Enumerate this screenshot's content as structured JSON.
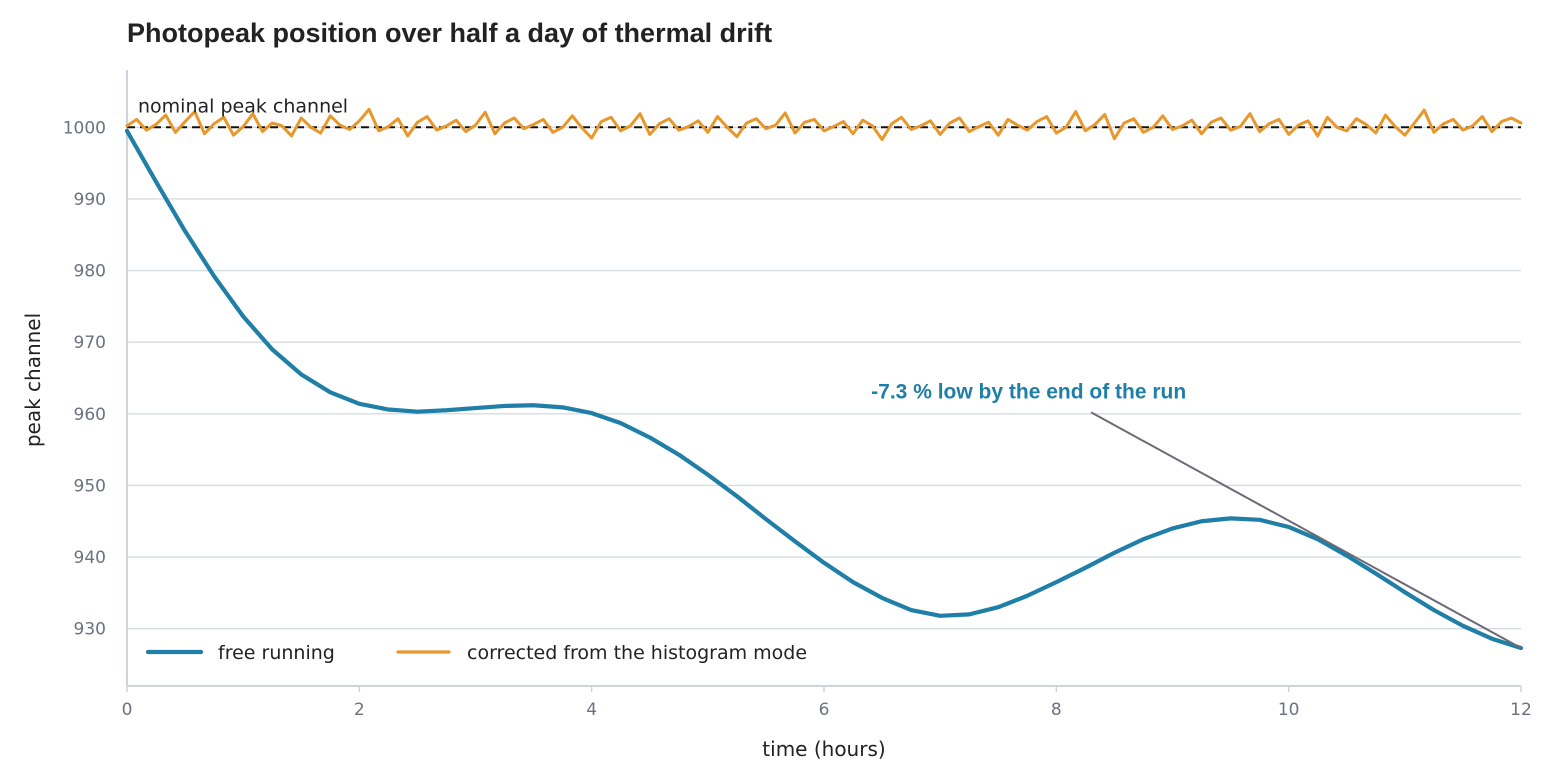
{
  "chart_data": {
    "type": "line",
    "title": "Photopeak position over half a day of thermal drift",
    "xlabel": "time (hours)",
    "ylabel": "peak channel",
    "xlim": [
      0,
      12
    ],
    "ylim": [
      922,
      1008
    ],
    "x_ticks": [
      0,
      2,
      4,
      6,
      8,
      10,
      12
    ],
    "y_ticks": [
      930,
      940,
      950,
      960,
      970,
      980,
      990,
      1000
    ],
    "grid": "horizontal",
    "legend_position": "bottom-left",
    "reference_line": {
      "label": "nominal peak channel",
      "y": 1000,
      "style": "dashed",
      "color": "#111111"
    },
    "annotation": {
      "text": "-7.3 % low by the end of the run",
      "color": "#1f7fa6",
      "point": [
        12,
        927.3
      ],
      "text_anchor_point": [
        8.3,
        960.2
      ]
    },
    "series": [
      {
        "name": "free running",
        "color": "#1f7fa6",
        "x": [
          0,
          0.25,
          0.5,
          0.75,
          1,
          1.25,
          1.5,
          1.75,
          2,
          2.25,
          2.5,
          2.75,
          3,
          3.25,
          3.5,
          3.75,
          4,
          4.25,
          4.5,
          4.75,
          5,
          5.25,
          5.5,
          5.75,
          6,
          6.25,
          6.5,
          6.75,
          7,
          7.25,
          7.5,
          7.75,
          8,
          8.25,
          8.5,
          8.75,
          9,
          9.25,
          9.5,
          9.75,
          10,
          10.25,
          10.5,
          10.75,
          11,
          11.25,
          11.5,
          11.75,
          12
        ],
        "values": [
          999.5,
          992.4,
          985.5,
          979.2,
          973.6,
          969.0,
          965.5,
          963.0,
          961.4,
          960.6,
          960.3,
          960.5,
          960.8,
          961.1,
          961.2,
          960.9,
          960.1,
          958.7,
          956.7,
          954.3,
          951.5,
          948.5,
          945.3,
          942.2,
          939.2,
          936.5,
          934.3,
          932.6,
          931.8,
          932.0,
          933.0,
          934.6,
          936.5,
          938.5,
          940.6,
          942.5,
          944.0,
          945.0,
          945.4,
          945.2,
          944.2,
          942.5,
          940.2,
          937.7,
          935.1,
          932.6,
          930.4,
          928.6,
          927.3
        ]
      },
      {
        "name": "corrected from the histogram mode",
        "color": "#e8972c",
        "x": [
          0,
          0.0833,
          0.1667,
          0.25,
          0.3333,
          0.4167,
          0.5,
          0.5833,
          0.6667,
          0.75,
          0.8333,
          0.9167,
          1,
          1.0833,
          1.1667,
          1.25,
          1.3333,
          1.4167,
          1.5,
          1.5833,
          1.6667,
          1.75,
          1.8333,
          1.9167,
          2,
          2.0833,
          2.1667,
          2.25,
          2.3333,
          2.4167,
          2.5,
          2.5833,
          2.6667,
          2.75,
          2.8333,
          2.9167,
          3,
          3.0833,
          3.1667,
          3.25,
          3.3333,
          3.4167,
          3.5,
          3.5833,
          3.6667,
          3.75,
          3.8333,
          3.9167,
          4,
          4.0833,
          4.1667,
          4.25,
          4.3333,
          4.4167,
          4.5,
          4.5833,
          4.6667,
          4.75,
          4.8333,
          4.9167,
          5,
          5.0833,
          5.1667,
          5.25,
          5.3333,
          5.4167,
          5.5,
          5.5833,
          5.6667,
          5.75,
          5.8333,
          5.9167,
          6,
          6.0833,
          6.1667,
          6.25,
          6.3333,
          6.4167,
          6.5,
          6.5833,
          6.6667,
          6.75,
          6.8333,
          6.9167,
          7,
          7.0833,
          7.1667,
          7.25,
          7.3333,
          7.4167,
          7.5,
          7.5833,
          7.6667,
          7.75,
          7.8333,
          7.9167,
          8,
          8.0833,
          8.1667,
          8.25,
          8.3333,
          8.4167,
          8.5,
          8.5833,
          8.6667,
          8.75,
          8.8333,
          8.9167,
          9,
          9.0833,
          9.1667,
          9.25,
          9.3333,
          9.4167,
          9.5,
          9.5833,
          9.6667,
          9.75,
          9.8333,
          9.9167,
          10,
          10.0833,
          10.1667,
          10.25,
          10.3333,
          10.4167,
          10.5,
          10.5833,
          10.6667,
          10.75,
          10.8333,
          10.9167,
          11,
          11.0833,
          11.1667,
          11.25,
          11.3333,
          11.4167,
          11.5,
          11.5833,
          11.6667,
          11.75,
          11.8333,
          11.9167,
          12
        ],
        "values": [
          1000.2,
          1001.1,
          999.6,
          1000.4,
          1001.7,
          999.3,
          1000.8,
          1002.2,
          999.1,
          1000.5,
          1001.4,
          998.9,
          1000.1,
          1001.9,
          999.4,
          1000.6,
          1000.2,
          998.8,
          1001.3,
          1000.0,
          999.2,
          1001.6,
          1000.3,
          999.7,
          1000.9,
          1002.5,
          999.5,
          1000.1,
          1001.2,
          998.8,
          1000.7,
          1001.5,
          999.6,
          1000.2,
          1001.0,
          999.4,
          1000.3,
          1002.1,
          999.1,
          1000.6,
          1001.3,
          999.8,
          1000.4,
          1001.1,
          999.3,
          1000.0,
          1001.6,
          999.9,
          998.5,
          1000.8,
          1001.4,
          999.5,
          1000.2,
          1001.9,
          999.0,
          1000.5,
          1001.2,
          999.6,
          1000.1,
          1000.9,
          999.3,
          1001.5,
          1000.0,
          998.7,
          1000.6,
          1001.2,
          999.8,
          1000.3,
          1002.0,
          999.2,
          1000.7,
          1001.1,
          999.5,
          1000.1,
          1000.8,
          999.1,
          1001.0,
          1000.2,
          998.3,
          1000.5,
          1001.4,
          999.7,
          1000.2,
          1000.9,
          999.0,
          1000.6,
          1001.3,
          999.4,
          1000.1,
          1000.7,
          998.9,
          1001.1,
          1000.3,
          999.6,
          1000.8,
          1001.5,
          999.2,
          1000.0,
          1002.2,
          999.5,
          1000.4,
          1001.8,
          998.4,
          1000.6,
          1001.2,
          999.3,
          1000.0,
          1001.6,
          999.7,
          1000.2,
          1001.0,
          999.1,
          1000.7,
          1001.3,
          999.6,
          1000.1,
          1001.9,
          999.4,
          1000.5,
          1001.1,
          999.0,
          1000.3,
          1000.9,
          998.8,
          1001.4,
          1000.0,
          999.5,
          1001.2,
          1000.4,
          999.2,
          1001.7,
          1000.1,
          998.9,
          1000.6,
          1002.4,
          999.3,
          1000.5,
          1001.1,
          999.6,
          1000.2,
          1001.5,
          999.4,
          1000.8,
          1001.3,
          1000.6
        ]
      }
    ]
  }
}
